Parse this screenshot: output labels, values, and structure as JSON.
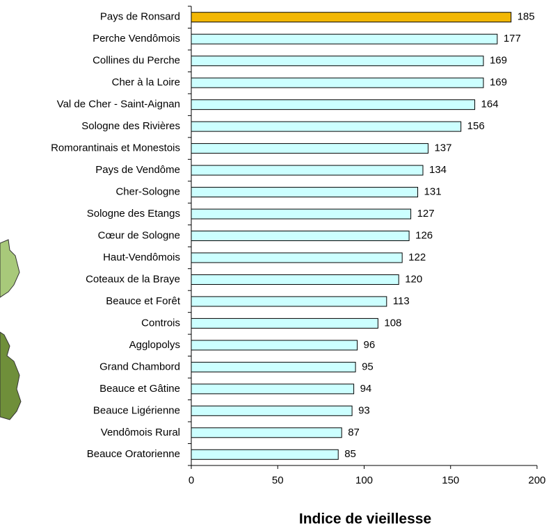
{
  "chart_data": {
    "type": "bar",
    "orientation": "horizontal",
    "x_label": "Indice de vieillesse",
    "categories": [
      "Pays de Ronsard",
      "Perche Vendômois",
      "Collines du Perche",
      "Cher à la Loire",
      "Val de Cher - Saint-Aignan",
      "Sologne des Rivières",
      "Romorantinais et  Monestois",
      "Pays de Vendôme",
      "Cher-Sologne",
      "Sologne des Etangs",
      "Cœur de Sologne",
      "Haut-Vendômois",
      "Coteaux de la Braye",
      "Beauce et Forêt",
      "Controis",
      "Agglopolys",
      "Grand Chambord",
      "Beauce et Gâtine",
      "Beauce Ligérienne",
      "Vendômois Rural",
      "Beauce Oratorienne"
    ],
    "values": [
      185,
      177,
      169,
      169,
      164,
      156,
      137,
      134,
      131,
      127,
      126,
      122,
      120,
      113,
      108,
      96,
      95,
      94,
      93,
      87,
      85
    ],
    "colors": [
      "#f2b705",
      "#ccffff",
      "#ccffff",
      "#ccffff",
      "#ccffff",
      "#ccffff",
      "#ccffff",
      "#ccffff",
      "#ccffff",
      "#ccffff",
      "#ccffff",
      "#ccffff",
      "#ccffff",
      "#ccffff",
      "#ccffff",
      "#ccffff",
      "#ccffff",
      "#ccffff",
      "#ccffff",
      "#ccffff",
      "#ccffff"
    ],
    "xlim": [
      0,
      200
    ],
    "xticks": [
      0,
      50,
      100,
      150,
      200
    ]
  }
}
